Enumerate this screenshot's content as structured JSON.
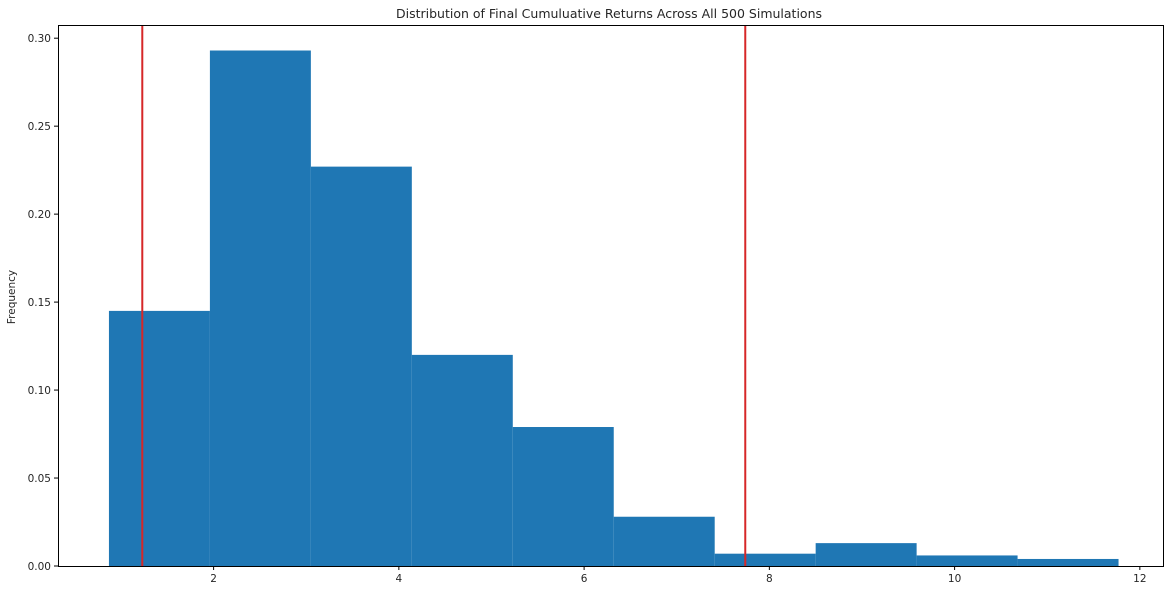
{
  "chart_data": {
    "type": "bar",
    "title": "Distribution of Final Cumuluative Returns Across All 500 Simulations",
    "xlabel": "",
    "ylabel": "Frequency",
    "xlim": [
      0.32,
      12.25
    ],
    "ylim": [
      0,
      0.3075
    ],
    "grid": false,
    "bar_color": "#1f77b4",
    "line_color": "#d62728",
    "bins": [
      {
        "x0": 0.87,
        "x1": 1.96,
        "value": 0.145
      },
      {
        "x0": 1.96,
        "x1": 3.05,
        "value": 0.293
      },
      {
        "x0": 3.05,
        "x1": 4.14,
        "value": 0.227
      },
      {
        "x0": 4.14,
        "x1": 5.23,
        "value": 0.12
      },
      {
        "x0": 5.23,
        "x1": 6.32,
        "value": 0.079
      },
      {
        "x0": 6.32,
        "x1": 7.41,
        "value": 0.028
      },
      {
        "x0": 7.41,
        "x1": 8.5,
        "value": 0.007
      },
      {
        "x0": 8.5,
        "x1": 9.59,
        "value": 0.013
      },
      {
        "x0": 9.59,
        "x1": 10.68,
        "value": 0.006
      },
      {
        "x0": 10.68,
        "x1": 11.77,
        "value": 0.004
      }
    ],
    "vlines": [
      1.23,
      7.74
    ],
    "xticks": [
      2,
      4,
      6,
      8,
      10,
      12
    ],
    "xtick_labels": [
      "2",
      "4",
      "6",
      "8",
      "10",
      "12"
    ],
    "yticks": [
      0.0,
      0.05,
      0.1,
      0.15,
      0.2,
      0.25,
      0.3
    ],
    "ytick_labels": [
      "0.00",
      "0.05",
      "0.10",
      "0.15",
      "0.20",
      "0.25",
      "0.30"
    ]
  }
}
